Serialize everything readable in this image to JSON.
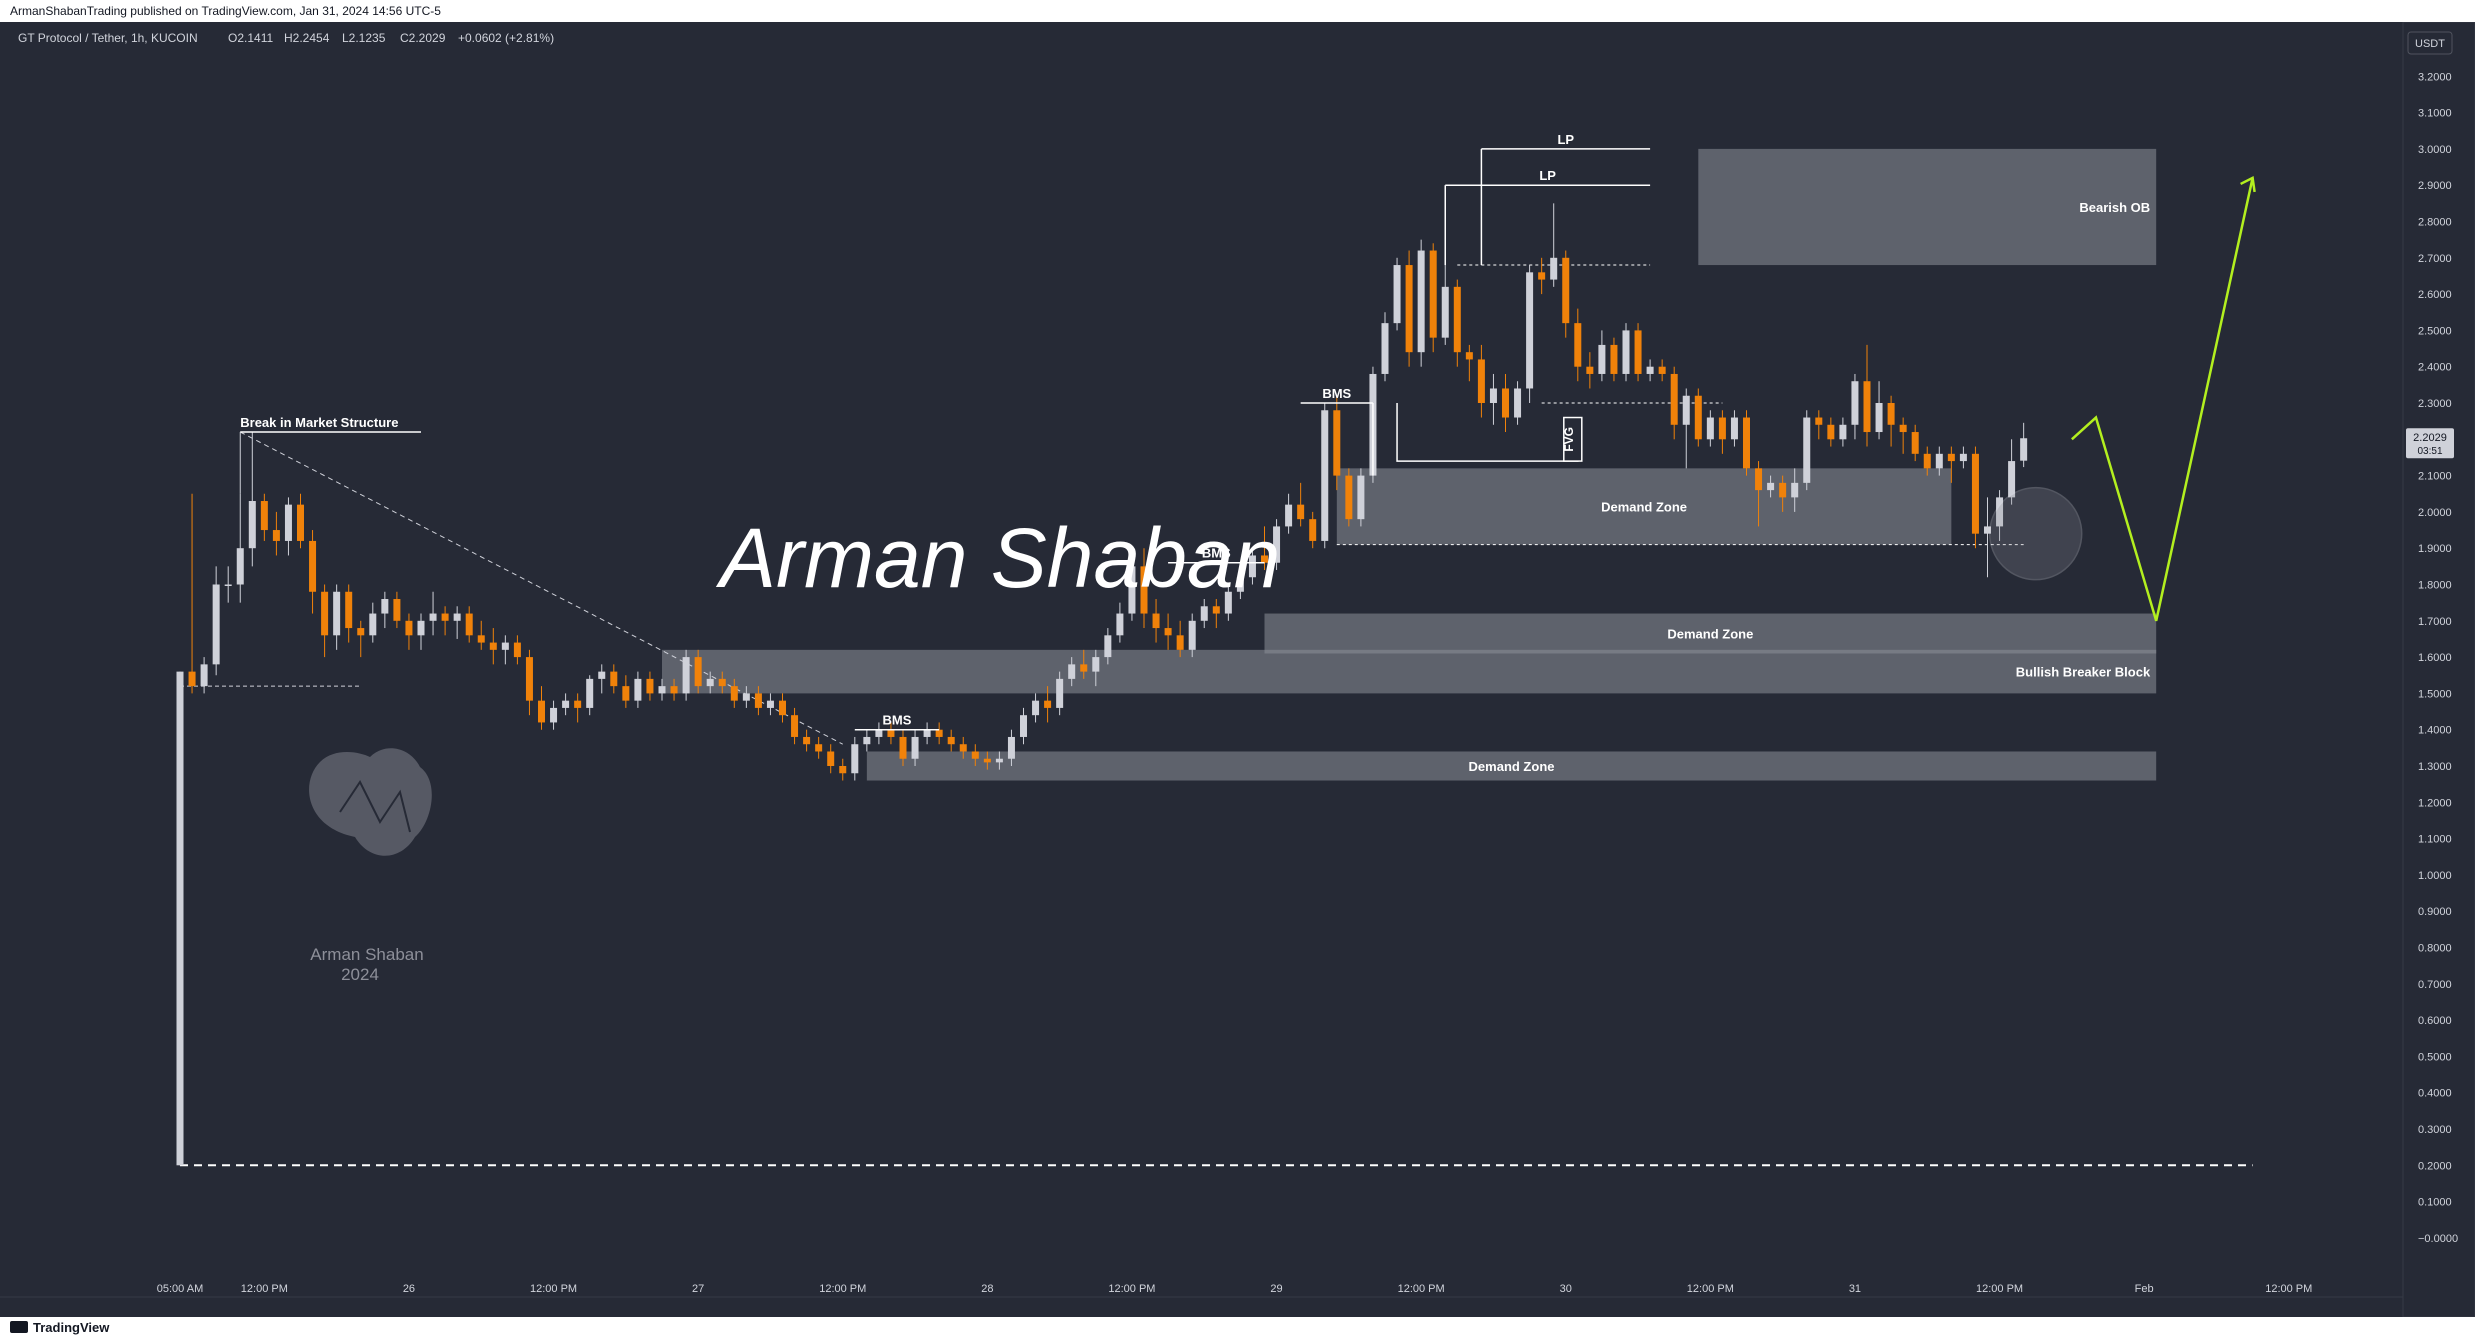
{
  "publisher": "ArmanShabanTrading published on TradingView.com, Jan 31, 2024 14:56 UTC-5",
  "branding": {
    "tv": "TradingView",
    "logo_text": "Arman Shaban",
    "logo_year": "2024",
    "signature": "Arman Shaban"
  },
  "colors": {
    "background": "#262a36",
    "up": "#cfd1d9",
    "down": "#f0820a",
    "zone": "#8d8f99",
    "forecast": "#b3ef1f",
    "text": "#ffffff"
  },
  "chart_data": {
    "type": "candlestick",
    "title": "GT Protocol / Tether, 1h, KUCOIN",
    "ohlc": {
      "open": "O2.1411",
      "high": "H2.2454",
      "low": "L2.1235",
      "close": "C2.2029",
      "change": "+0.0602 (+2.81%)"
    },
    "currency": "USDT",
    "last_price": "2.2029",
    "countdown": "03:51",
    "ylim": [
      -0.05,
      3.3
    ],
    "y_ticks": [
      "3.2000",
      "3.1000",
      "3.0000",
      "2.9000",
      "2.8000",
      "2.7000",
      "2.6000",
      "2.5000",
      "2.4000",
      "2.3000",
      "2.2000",
      "2.1000",
      "2.0000",
      "1.9000",
      "1.8000",
      "1.7000",
      "1.6000",
      "1.5000",
      "1.4000",
      "1.3000",
      "1.2000",
      "1.1000",
      "1.0000",
      "0.9000",
      "0.8000",
      "0.7000",
      "0.6000",
      "0.5000",
      "0.4000",
      "0.3000",
      "0.2000",
      "0.1000",
      "−0.0000"
    ],
    "x_ticks": [
      {
        "label": "05:00 AM",
        "i": 0
      },
      {
        "label": "12:00 PM",
        "i": 7
      },
      {
        "label": "26",
        "i": 19
      },
      {
        "label": "12:00 PM",
        "i": 31
      },
      {
        "label": "27",
        "i": 43
      },
      {
        "label": "12:00 PM",
        "i": 55
      },
      {
        "label": "28",
        "i": 67
      },
      {
        "label": "12:00 PM",
        "i": 79
      },
      {
        "label": "29",
        "i": 91
      },
      {
        "label": "12:00 PM",
        "i": 103
      },
      {
        "label": "30",
        "i": 115
      },
      {
        "label": "12:00 PM",
        "i": 127
      },
      {
        "label": "31",
        "i": 139
      },
      {
        "label": "12:00 PM",
        "i": 151
      },
      {
        "label": "Feb",
        "i": 163
      },
      {
        "label": "12:00 PM",
        "i": 175
      }
    ],
    "candles": [
      [
        0.2,
        1.56,
        0.2,
        1.56
      ],
      [
        1.56,
        2.05,
        1.5,
        1.52
      ],
      [
        1.52,
        1.6,
        1.5,
        1.58
      ],
      [
        1.58,
        1.85,
        1.55,
        1.8
      ],
      [
        1.8,
        1.85,
        1.75,
        1.8
      ],
      [
        1.8,
        2.05,
        1.75,
        1.9
      ],
      [
        1.9,
        2.22,
        1.85,
        2.03
      ],
      [
        2.03,
        2.05,
        1.92,
        1.95
      ],
      [
        1.95,
        2.0,
        1.88,
        1.92
      ],
      [
        1.92,
        2.04,
        1.88,
        2.02
      ],
      [
        2.02,
        2.05,
        1.9,
        1.92
      ],
      [
        1.92,
        1.95,
        1.72,
        1.78
      ],
      [
        1.78,
        1.8,
        1.6,
        1.66
      ],
      [
        1.66,
        1.8,
        1.62,
        1.78
      ],
      [
        1.78,
        1.8,
        1.64,
        1.68
      ],
      [
        1.68,
        1.7,
        1.6,
        1.66
      ],
      [
        1.66,
        1.75,
        1.64,
        1.72
      ],
      [
        1.72,
        1.78,
        1.68,
        1.76
      ],
      [
        1.76,
        1.78,
        1.68,
        1.7
      ],
      [
        1.7,
        1.72,
        1.62,
        1.66
      ],
      [
        1.66,
        1.72,
        1.62,
        1.7
      ],
      [
        1.7,
        1.78,
        1.66,
        1.72
      ],
      [
        1.72,
        1.74,
        1.66,
        1.7
      ],
      [
        1.7,
        1.74,
        1.65,
        1.72
      ],
      [
        1.72,
        1.74,
        1.64,
        1.66
      ],
      [
        1.66,
        1.7,
        1.62,
        1.64
      ],
      [
        1.64,
        1.68,
        1.58,
        1.62
      ],
      [
        1.62,
        1.66,
        1.58,
        1.64
      ],
      [
        1.64,
        1.66,
        1.58,
        1.6
      ],
      [
        1.6,
        1.62,
        1.44,
        1.48
      ],
      [
        1.48,
        1.52,
        1.4,
        1.42
      ],
      [
        1.42,
        1.48,
        1.4,
        1.46
      ],
      [
        1.46,
        1.5,
        1.44,
        1.48
      ],
      [
        1.48,
        1.5,
        1.42,
        1.46
      ],
      [
        1.46,
        1.55,
        1.44,
        1.54
      ],
      [
        1.54,
        1.58,
        1.5,
        1.56
      ],
      [
        1.56,
        1.58,
        1.5,
        1.52
      ],
      [
        1.52,
        1.55,
        1.46,
        1.48
      ],
      [
        1.48,
        1.56,
        1.46,
        1.54
      ],
      [
        1.54,
        1.56,
        1.48,
        1.5
      ],
      [
        1.5,
        1.54,
        1.48,
        1.52
      ],
      [
        1.52,
        1.54,
        1.48,
        1.5
      ],
      [
        1.5,
        1.62,
        1.48,
        1.6
      ],
      [
        1.6,
        1.62,
        1.5,
        1.52
      ],
      [
        1.52,
        1.56,
        1.5,
        1.54
      ],
      [
        1.54,
        1.56,
        1.5,
        1.52
      ],
      [
        1.52,
        1.54,
        1.46,
        1.48
      ],
      [
        1.48,
        1.52,
        1.46,
        1.5
      ],
      [
        1.5,
        1.52,
        1.44,
        1.46
      ],
      [
        1.46,
        1.5,
        1.44,
        1.48
      ],
      [
        1.48,
        1.5,
        1.42,
        1.44
      ],
      [
        1.44,
        1.46,
        1.36,
        1.38
      ],
      [
        1.38,
        1.4,
        1.34,
        1.36
      ],
      [
        1.36,
        1.38,
        1.32,
        1.34
      ],
      [
        1.34,
        1.36,
        1.28,
        1.3
      ],
      [
        1.3,
        1.32,
        1.26,
        1.28
      ],
      [
        1.28,
        1.38,
        1.26,
        1.36
      ],
      [
        1.36,
        1.4,
        1.34,
        1.38
      ],
      [
        1.38,
        1.42,
        1.36,
        1.4
      ],
      [
        1.4,
        1.42,
        1.36,
        1.38
      ],
      [
        1.38,
        1.4,
        1.3,
        1.32
      ],
      [
        1.32,
        1.4,
        1.3,
        1.38
      ],
      [
        1.38,
        1.42,
        1.36,
        1.4
      ],
      [
        1.4,
        1.42,
        1.36,
        1.38
      ],
      [
        1.38,
        1.4,
        1.34,
        1.36
      ],
      [
        1.36,
        1.38,
        1.32,
        1.34
      ],
      [
        1.34,
        1.36,
        1.3,
        1.32
      ],
      [
        1.32,
        1.34,
        1.29,
        1.31
      ],
      [
        1.31,
        1.34,
        1.29,
        1.32
      ],
      [
        1.32,
        1.4,
        1.3,
        1.38
      ],
      [
        1.38,
        1.46,
        1.36,
        1.44
      ],
      [
        1.44,
        1.5,
        1.42,
        1.48
      ],
      [
        1.48,
        1.52,
        1.42,
        1.46
      ],
      [
        1.46,
        1.56,
        1.44,
        1.54
      ],
      [
        1.54,
        1.6,
        1.52,
        1.58
      ],
      [
        1.58,
        1.62,
        1.54,
        1.56
      ],
      [
        1.56,
        1.62,
        1.52,
        1.6
      ],
      [
        1.6,
        1.68,
        1.58,
        1.66
      ],
      [
        1.66,
        1.75,
        1.64,
        1.72
      ],
      [
        1.72,
        1.86,
        1.7,
        1.85
      ],
      [
        1.85,
        1.9,
        1.68,
        1.72
      ],
      [
        1.72,
        1.76,
        1.64,
        1.68
      ],
      [
        1.68,
        1.72,
        1.62,
        1.66
      ],
      [
        1.66,
        1.7,
        1.6,
        1.62
      ],
      [
        1.62,
        1.72,
        1.6,
        1.7
      ],
      [
        1.7,
        1.76,
        1.68,
        1.74
      ],
      [
        1.74,
        1.76,
        1.68,
        1.72
      ],
      [
        1.72,
        1.8,
        1.7,
        1.78
      ],
      [
        1.78,
        1.84,
        1.76,
        1.82
      ],
      [
        1.82,
        1.9,
        1.8,
        1.88
      ],
      [
        1.88,
        1.96,
        1.84,
        1.86
      ],
      [
        1.86,
        1.98,
        1.84,
        1.96
      ],
      [
        1.96,
        2.05,
        1.94,
        2.02
      ],
      [
        2.02,
        2.08,
        1.96,
        1.98
      ],
      [
        1.98,
        2.0,
        1.9,
        1.92
      ],
      [
        1.92,
        2.3,
        1.9,
        2.28
      ],
      [
        2.28,
        2.32,
        2.06,
        2.1
      ],
      [
        2.1,
        2.12,
        1.96,
        1.98
      ],
      [
        1.98,
        2.12,
        1.96,
        2.1
      ],
      [
        2.1,
        2.4,
        2.08,
        2.38
      ],
      [
        2.38,
        2.55,
        2.36,
        2.52
      ],
      [
        2.52,
        2.7,
        2.5,
        2.68
      ],
      [
        2.68,
        2.72,
        2.4,
        2.44
      ],
      [
        2.44,
        2.75,
        2.4,
        2.72
      ],
      [
        2.72,
        2.74,
        2.44,
        2.48
      ],
      [
        2.48,
        2.76,
        2.46,
        2.62
      ],
      [
        2.62,
        2.64,
        2.4,
        2.44
      ],
      [
        2.44,
        2.46,
        2.36,
        2.42
      ],
      [
        2.42,
        2.46,
        2.26,
        2.3
      ],
      [
        2.3,
        2.38,
        2.24,
        2.34
      ],
      [
        2.34,
        2.38,
        2.22,
        2.26
      ],
      [
        2.26,
        2.36,
        2.24,
        2.34
      ],
      [
        2.34,
        2.68,
        2.3,
        2.66
      ],
      [
        2.66,
        2.7,
        2.6,
        2.64
      ],
      [
        2.64,
        2.85,
        2.62,
        2.7
      ],
      [
        2.7,
        2.72,
        2.48,
        2.52
      ],
      [
        2.52,
        2.56,
        2.36,
        2.4
      ],
      [
        2.4,
        2.44,
        2.34,
        2.38
      ],
      [
        2.38,
        2.5,
        2.36,
        2.46
      ],
      [
        2.46,
        2.48,
        2.36,
        2.38
      ],
      [
        2.38,
        2.52,
        2.36,
        2.5
      ],
      [
        2.5,
        2.52,
        2.36,
        2.38
      ],
      [
        2.38,
        2.42,
        2.36,
        2.4
      ],
      [
        2.4,
        2.42,
        2.36,
        2.38
      ],
      [
        2.38,
        2.4,
        2.2,
        2.24
      ],
      [
        2.24,
        2.34,
        2.12,
        2.32
      ],
      [
        2.32,
        2.34,
        2.18,
        2.2
      ],
      [
        2.2,
        2.28,
        2.18,
        2.26
      ],
      [
        2.26,
        2.28,
        2.16,
        2.2
      ],
      [
        2.2,
        2.28,
        2.18,
        2.26
      ],
      [
        2.26,
        2.28,
        2.1,
        2.12
      ],
      [
        2.12,
        2.14,
        1.96,
        2.06
      ],
      [
        2.06,
        2.1,
        2.04,
        2.08
      ],
      [
        2.08,
        2.1,
        2.0,
        2.04
      ],
      [
        2.04,
        2.12,
        2.0,
        2.08
      ],
      [
        2.08,
        2.28,
        2.06,
        2.26
      ],
      [
        2.26,
        2.28,
        2.2,
        2.24
      ],
      [
        2.24,
        2.26,
        2.18,
        2.2
      ],
      [
        2.2,
        2.26,
        2.18,
        2.24
      ],
      [
        2.24,
        2.38,
        2.2,
        2.36
      ],
      [
        2.36,
        2.46,
        2.18,
        2.22
      ],
      [
        2.22,
        2.36,
        2.2,
        2.3
      ],
      [
        2.3,
        2.32,
        2.18,
        2.24
      ],
      [
        2.24,
        2.26,
        2.16,
        2.22
      ],
      [
        2.22,
        2.24,
        2.14,
        2.16
      ],
      [
        2.16,
        2.18,
        2.1,
        2.12
      ],
      [
        2.12,
        2.18,
        2.1,
        2.16
      ],
      [
        2.16,
        2.18,
        2.08,
        2.14
      ],
      [
        2.14,
        2.18,
        2.12,
        2.16
      ],
      [
        2.16,
        2.18,
        1.9,
        1.94
      ],
      [
        1.94,
        2.04,
        1.82,
        1.96
      ],
      [
        1.96,
        2.06,
        1.92,
        2.04
      ],
      [
        2.04,
        2.2,
        2.02,
        2.14
      ],
      [
        2.1411,
        2.2454,
        2.1235,
        2.2029
      ]
    ],
    "zones": [
      {
        "label": "Bearish OB",
        "y1": 2.68,
        "y2": 3.0,
        "x1": 126,
        "x2": 164
      },
      {
        "label": "Demand Zone",
        "y1": 1.91,
        "y2": 2.12,
        "x1": 96,
        "x2": 147
      },
      {
        "label": "Demand Zone",
        "y1": 1.61,
        "y2": 1.72,
        "x1": 90,
        "x2": 164
      },
      {
        "label": "Bullish Breaker Block",
        "y1": 1.5,
        "y2": 1.62,
        "x1": 40,
        "x2": 164
      },
      {
        "label": "Demand Zone",
        "y1": 1.26,
        "y2": 1.34,
        "x1": 57,
        "x2": 164
      }
    ],
    "annotations": [
      {
        "label": "Break in Market Structure",
        "y": 2.22,
        "x1": 5,
        "x2": 20
      },
      {
        "label": "BMS",
        "y": 1.4,
        "x1": 56,
        "x2": 63
      },
      {
        "label": "BMS",
        "y": 1.86,
        "x1": 82,
        "x2": 90
      },
      {
        "label": "BMS",
        "y": 2.3,
        "x1": 93,
        "x2": 99
      },
      {
        "label": "LP",
        "y": 3.0,
        "x1": 108,
        "x2": 122
      },
      {
        "label": "LP",
        "y": 2.9,
        "x1": 105,
        "x2": 122
      },
      {
        "label": "FVG",
        "y1": 2.14,
        "y2": 2.26,
        "x1": 101,
        "x2": 116
      }
    ],
    "forecast_path": [
      [
        157,
        2.2
      ],
      [
        159,
        2.26
      ],
      [
        164,
        1.7
      ],
      [
        172,
        2.92
      ]
    ]
  }
}
